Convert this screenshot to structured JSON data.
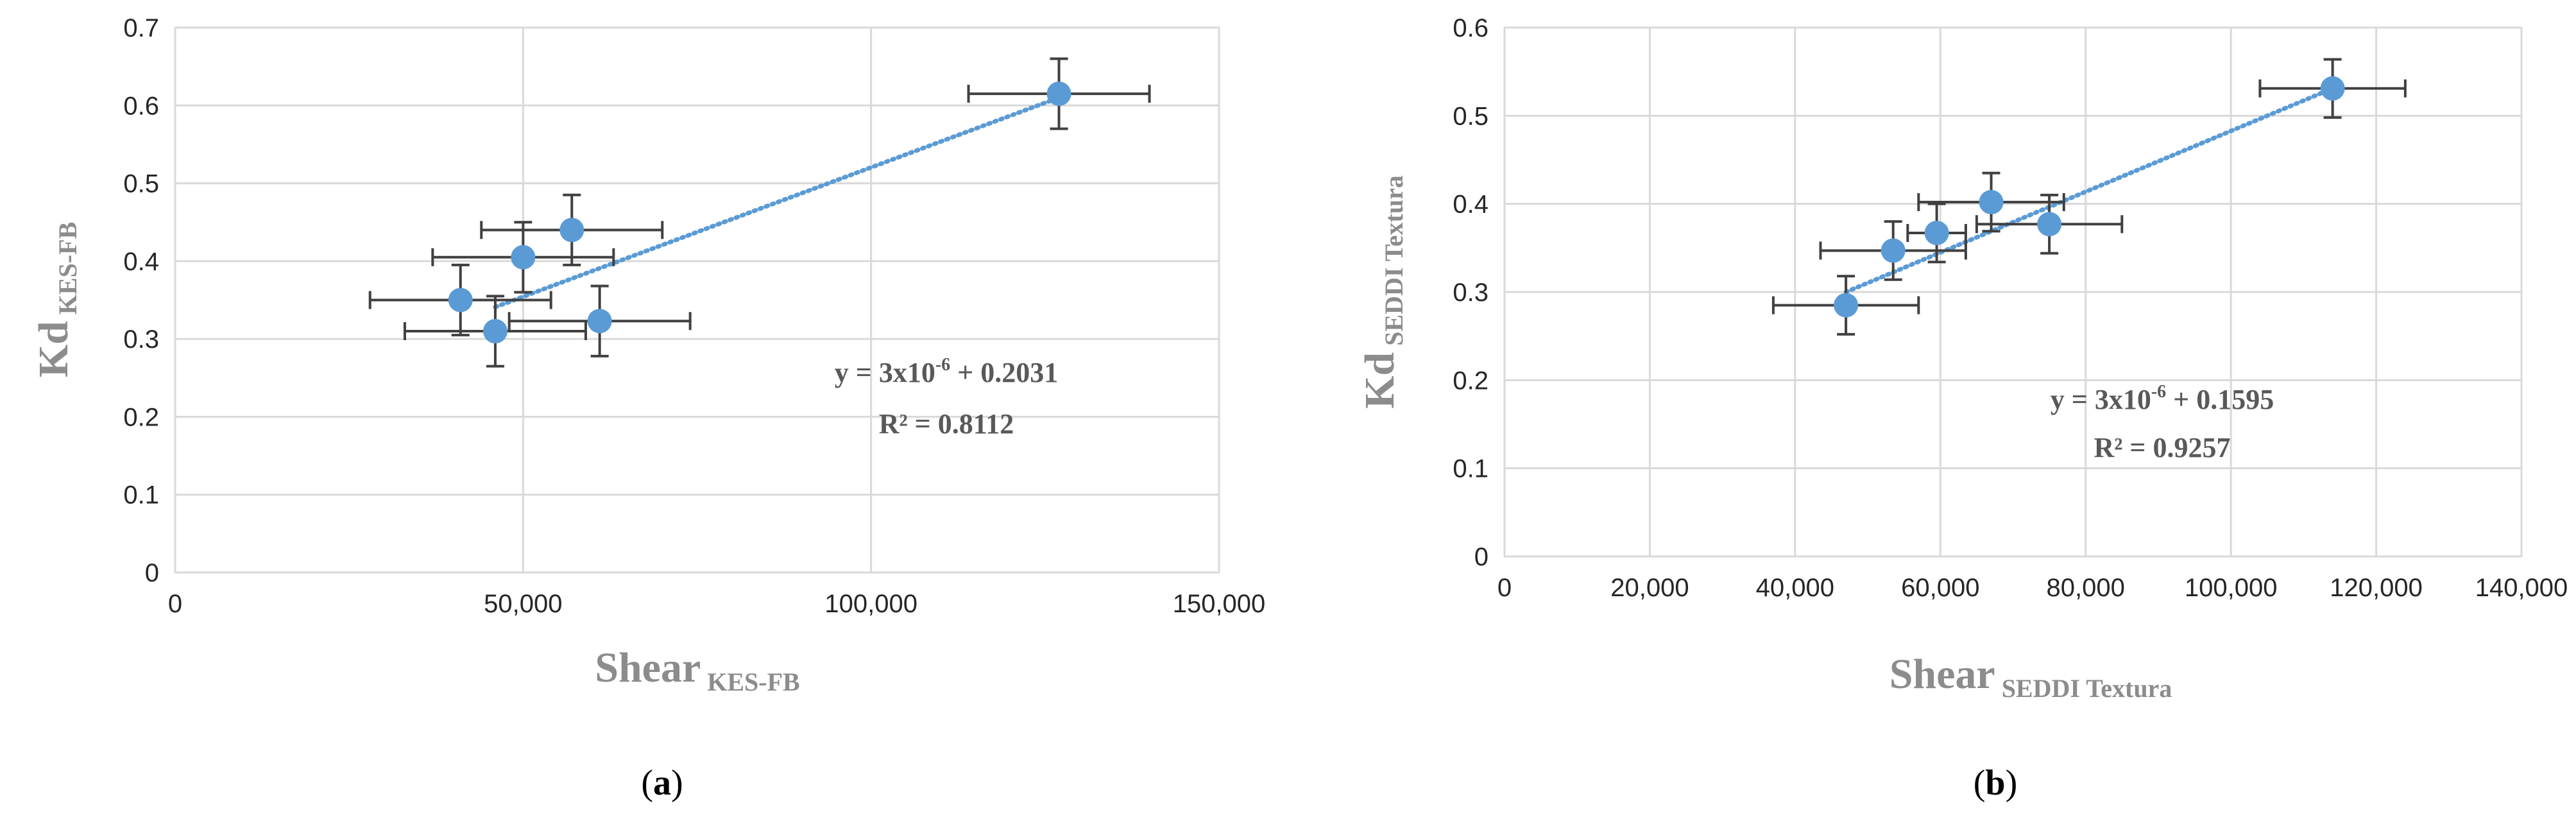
{
  "chart_data": [
    {
      "type": "scatter",
      "caption": {
        "open": "(",
        "letter": "a",
        "close": ")"
      },
      "xlabel": {
        "main": "Shear",
        "sub": "KES-FB"
      },
      "ylabel": {
        "main": "Kd",
        "sub": "KES-FB"
      },
      "xlim": [
        0,
        150000
      ],
      "ylim": [
        0,
        0.7
      ],
      "x_ticks": [
        0,
        50000,
        100000,
        150000
      ],
      "x_tick_labels": [
        "0",
        "50,000",
        "100,000",
        "150,000"
      ],
      "y_ticks": [
        0,
        0.1,
        0.2,
        0.3,
        0.4,
        0.5,
        0.6,
        0.7
      ],
      "y_tick_labels": [
        "0",
        "0.1",
        "0.2",
        "0.3",
        "0.4",
        "0.5",
        "0.6",
        "0.7"
      ],
      "grid": true,
      "marker_color": "#5b9bd5",
      "trendline_color": "#5b9bd5",
      "errorbar_color": "#404040",
      "points": [
        {
          "x": 41000,
          "y": 0.35,
          "xerr": 13000,
          "yerr": 0.045
        },
        {
          "x": 46000,
          "y": 0.31,
          "xerr": 13000,
          "yerr": 0.045
        },
        {
          "x": 50000,
          "y": 0.405,
          "xerr": 13000,
          "yerr": 0.045
        },
        {
          "x": 57000,
          "y": 0.44,
          "xerr": 13000,
          "yerr": 0.045
        },
        {
          "x": 61000,
          "y": 0.323,
          "xerr": 13000,
          "yerr": 0.045
        },
        {
          "x": 127000,
          "y": 0.615,
          "xerr": 13000,
          "yerr": 0.045
        }
      ],
      "trendline": {
        "x": [
          46000,
          127000
        ],
        "y": [
          0.341,
          0.61
        ]
      },
      "equation": {
        "lead": "y = 3x10",
        "exp": "-6",
        "tail": " + 0.2031",
        "r2": "R² = 0.8112"
      }
    },
    {
      "type": "scatter",
      "caption": {
        "open": "(",
        "letter": "b",
        "close": ")"
      },
      "xlabel": {
        "main": "Shear",
        "sub": "SEDDI Textura"
      },
      "ylabel": {
        "main": "Kd",
        "sub": "SEDDI Textura"
      },
      "xlim": [
        0,
        140000
      ],
      "ylim": [
        0,
        0.6
      ],
      "x_ticks": [
        0,
        20000,
        40000,
        60000,
        80000,
        100000,
        120000,
        140000
      ],
      "x_tick_labels": [
        "0",
        "20,000",
        "40,000",
        "60,000",
        "80,000",
        "100,000",
        "120,000",
        "140,000"
      ],
      "y_ticks": [
        0,
        0.1,
        0.2,
        0.3,
        0.4,
        0.5,
        0.6
      ],
      "y_tick_labels": [
        "0",
        "0.1",
        "0.2",
        "0.3",
        "0.4",
        "0.5",
        "0.6"
      ],
      "grid": true,
      "marker_color": "#5b9bd5",
      "trendline_color": "#5b9bd5",
      "errorbar_color": "#404040",
      "points": [
        {
          "x": 47000,
          "y": 0.285,
          "xerr": 10000,
          "yerr": 0.033
        },
        {
          "x": 53500,
          "y": 0.347,
          "xerr": 10000,
          "yerr": 0.033
        },
        {
          "x": 59500,
          "y": 0.367,
          "xerr": 4000,
          "yerr": 0.033
        },
        {
          "x": 67000,
          "y": 0.402,
          "xerr": 10000,
          "yerr": 0.033
        },
        {
          "x": 75000,
          "y": 0.377,
          "xerr": 10000,
          "yerr": 0.033
        },
        {
          "x": 114000,
          "y": 0.531,
          "xerr": 10000,
          "yerr": 0.033
        }
      ],
      "trendline": {
        "x": [
          47000,
          114000
        ],
        "y": [
          0.3,
          0.531
        ]
      },
      "equation": {
        "lead": "y = 3x10",
        "exp": "-6",
        "tail": " + 0.1595",
        "r2": "R² = 0.9257"
      }
    }
  ]
}
